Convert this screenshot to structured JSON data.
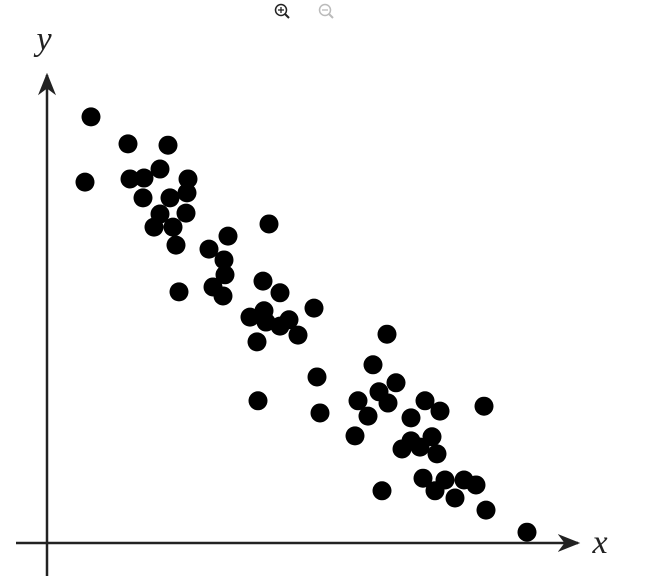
{
  "chart_data": {
    "type": "scatter",
    "x_label": "x",
    "y_label": "y",
    "xlim": [
      0,
      100
    ],
    "ylim": [
      0,
      100
    ],
    "color": "#000000",
    "x": [
      8.8,
      7.6,
      16.2,
      24.2,
      16.6,
      19.4,
      22.6,
      28.2,
      19.2,
      24.6,
      28,
      22.6,
      21.4,
      27.8,
      25.2,
      25.8,
      26.4,
      32.4,
      36.2,
      35.4,
      35.6,
      33.2,
      35.2,
      44.4,
      43.2,
      46.6,
      40.6,
      43.4,
      43.8,
      42,
      46.6,
      48.4,
      50.2,
      53.4,
      42.2,
      54,
      54.6,
      68,
      65.2,
      66.4,
      69.8,
      62.2,
      64.2,
      68.2,
      61.6,
      75.6,
      78.6,
      72.8,
      87.4,
      77,
      72.8,
      71,
      74.6,
      78,
      75.2,
      77.6,
      79.6,
      83.4,
      85.8,
      81.6,
      87.8,
      67,
      96
    ],
    "values": [
      94.7,
      80.2,
      88.7,
      88.4,
      80.9,
      81.1,
      83.1,
      80.9,
      76.7,
      76.7,
      77.8,
      73.1,
      70.2,
      73.3,
      70.2,
      66.2,
      55.8,
      65.3,
      68.2,
      62.9,
      59.6,
      56.9,
      54.9,
      70.9,
      58.2,
      55.6,
      50.2,
      51.6,
      49.1,
      44.7,
      48.2,
      49.6,
      46.2,
      52.2,
      31.6,
      36.9,
      28.9,
      46.4,
      39.6,
      33.6,
      35.6,
      31.6,
      28.2,
      31.1,
      23.8,
      31.6,
      29.3,
      27.8,
      30.4,
      23.6,
      22.7,
      20.9,
      21.3,
      19.8,
      14.4,
      11.6,
      14,
      14,
      12.9,
      10,
      7.3,
      11.6,
      2.4
    ]
  }
}
